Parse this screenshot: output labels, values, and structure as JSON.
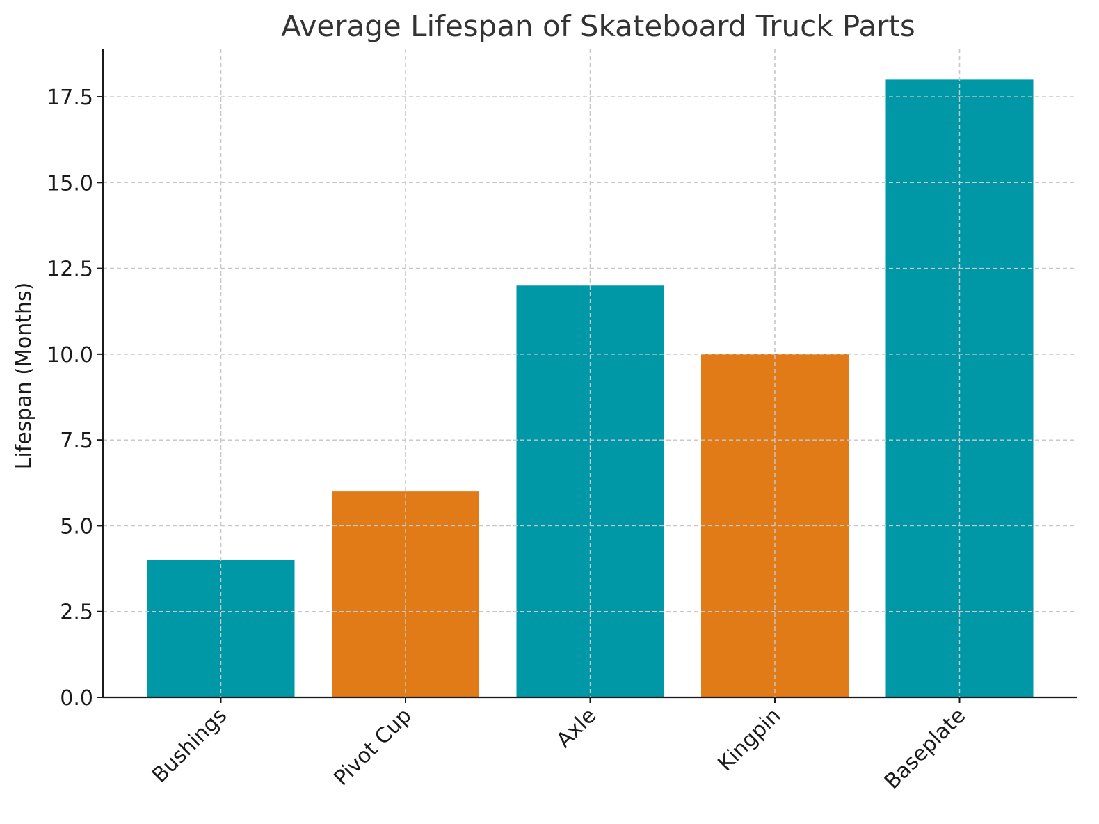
{
  "chart_data": {
    "type": "bar",
    "title": "Average Lifespan of Skateboard Truck Parts",
    "xlabel": "",
    "ylabel": "Lifespan (Months)",
    "categories": [
      "Bushings",
      "Pivot Cup",
      "Axle",
      "Kingpin",
      "Baseplate"
    ],
    "values": [
      4,
      6,
      12,
      10,
      18
    ],
    "bar_colors": [
      "#0097a7",
      "#e07b18",
      "#0097a7",
      "#e07b18",
      "#0097a7"
    ],
    "ylim": [
      0,
      18.9
    ],
    "yticks": [
      0.0,
      2.5,
      5.0,
      7.5,
      10.0,
      12.5,
      15.0,
      17.5
    ],
    "ytick_labels": [
      "0.0",
      "2.5",
      "5.0",
      "7.5",
      "10.0",
      "12.5",
      "15.0",
      "17.5"
    ],
    "grid": true,
    "grid_style": "dashed",
    "xtick_rotation": "45 degrees"
  }
}
